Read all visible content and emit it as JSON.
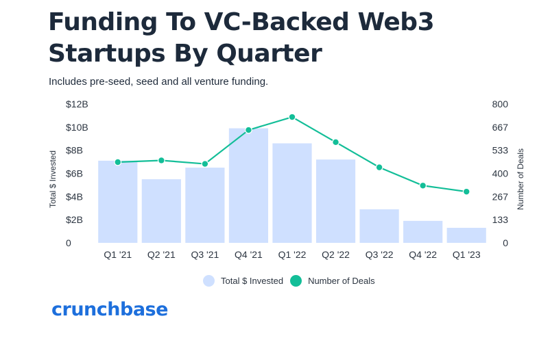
{
  "title": "Funding To VC-Backed Web3 Startups By Quarter",
  "subtitle": "Includes pre-seed, seed and all venture funding.",
  "brand": {
    "name": "crunchbase",
    "color": "#1d6fdc"
  },
  "legend": {
    "bar_label": "Total $ Invested",
    "line_label": "Number of Deals"
  },
  "colors": {
    "bar": "#cfe0ff",
    "line": "#13be98"
  },
  "chart_data": {
    "type": "bar+line",
    "categories": [
      "Q1 '21",
      "Q2 '21",
      "Q3 '21",
      "Q4 '21",
      "Q1 '22",
      "Q2 '22",
      "Q3 '22",
      "Q4 '22",
      "Q1 '23"
    ],
    "series": [
      {
        "name": "Total $ Invested",
        "type": "bar",
        "axis": "left",
        "unit": "$B",
        "values": [
          7.1,
          5.5,
          6.5,
          9.9,
          8.6,
          7.2,
          2.9,
          1.9,
          1.3
        ]
      },
      {
        "name": "Number of Deals",
        "type": "line",
        "axis": "right",
        "values": [
          465,
          475,
          455,
          650,
          725,
          580,
          435,
          330,
          295
        ]
      }
    ],
    "ylabel": "Total $ Invested",
    "ylabel_right": "Number of Deals",
    "ylim": [
      0,
      12
    ],
    "ylim_right": [
      0,
      800
    ],
    "yticks": [
      "0",
      "$2B",
      "$4B",
      "$6B",
      "$8B",
      "$10B",
      "$12B"
    ],
    "yticks_right": [
      "0",
      "133",
      "267",
      "400",
      "533",
      "667",
      "800"
    ],
    "legend_position": "bottom",
    "grid": false
  }
}
